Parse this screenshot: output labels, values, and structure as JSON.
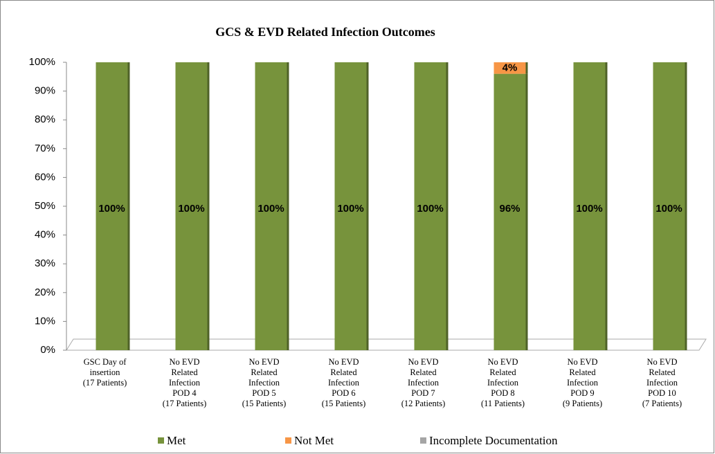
{
  "chart_data": {
    "type": "stacked_bar",
    "title": "GCS & EVD Related Infection Outcomes",
    "categories": [
      "GSC Day of\ninsertion\n(17 Patients)",
      "No EVD\nRelated\nInfection\nPOD 4\n(17 Patients)",
      "No EVD\nRelated\nInfection\nPOD 5\n(15 Patients)",
      "No EVD\nRelated\nInfection\nPOD 6\n(15 Patients)",
      "No EVD\nRelated\nInfection\nPOD 7\n(12 Patients)",
      "No EVD\nRelated\nInfection\nPOD 8\n(11 Patients)",
      "No EVD\nRelated\nInfection\nPOD 9\n(9 Patients)",
      "No EVD\nRelated\nInfection\nPOD 10\n(7 Patients)"
    ],
    "series": [
      {
        "name": "Met",
        "color": "#77933c",
        "values": [
          100,
          100,
          100,
          100,
          100,
          96,
          100,
          100
        ],
        "value_labels": [
          "100%",
          "100%",
          "100%",
          "100%",
          "100%",
          "96%",
          "100%",
          "100%"
        ]
      },
      {
        "name": "Not Met",
        "color": "#f79646",
        "values": [
          0,
          0,
          0,
          0,
          0,
          4,
          0,
          0
        ],
        "value_labels": [
          null,
          null,
          null,
          null,
          null,
          "4%",
          null,
          null
        ]
      },
      {
        "name": "Incomplete Documentation",
        "color": "#a5a5a5",
        "values": [
          0,
          0,
          0,
          0,
          0,
          0,
          0,
          0
        ]
      }
    ],
    "ylim": [
      0,
      100
    ],
    "yticks": [
      {
        "value": 0,
        "label": "0%"
      },
      {
        "value": 10,
        "label": "10%"
      },
      {
        "value": 20,
        "label": "20%"
      },
      {
        "value": 30,
        "label": "30%"
      },
      {
        "value": 40,
        "label": "40%"
      },
      {
        "value": 50,
        "label": "50%"
      },
      {
        "value": 60,
        "label": "60%"
      },
      {
        "value": 70,
        "label": "70%"
      },
      {
        "value": 80,
        "label": "80%"
      },
      {
        "value": 90,
        "label": "90%"
      },
      {
        "value": 100,
        "label": "100%"
      }
    ],
    "legend": "bottom"
  }
}
